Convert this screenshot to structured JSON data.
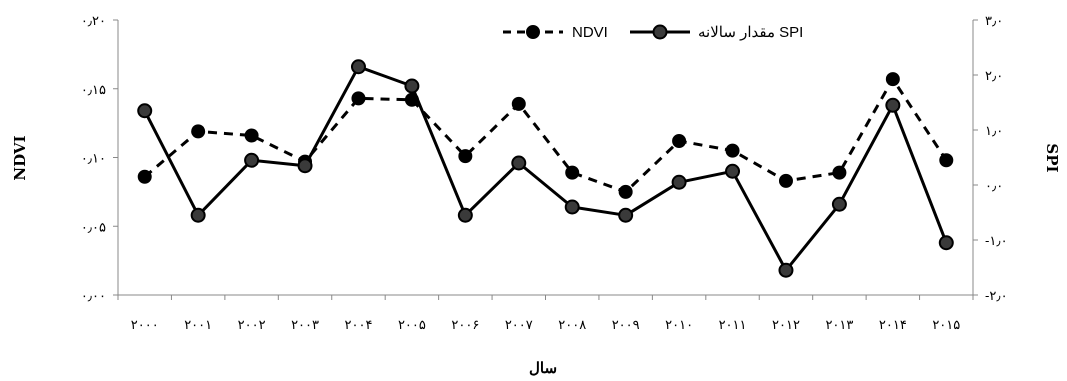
{
  "chart_data": {
    "type": "line",
    "x": [
      "۲۰۰۰",
      "۲۰۰۱",
      "۲۰۰۲",
      "۲۰۰۳",
      "۲۰۰۴",
      "۲۰۰۵",
      "۲۰۰۶",
      "۲۰۰۷",
      "۲۰۰۸",
      "۲۰۰۹",
      "۲۰۱۰",
      "۲۰۱۱",
      "۲۰۱۲",
      "۲۰۱۳",
      "۲۰۱۴",
      "۲۰۱۵"
    ],
    "xlabel": "سال",
    "ylabel_left": "NDVI",
    "ylabel_right": "SPI",
    "ylim_left": [
      0,
      0.2
    ],
    "ylim_right": [
      -2,
      3
    ],
    "yticks_left": [
      "۰٫۰۰",
      "۰٫۰۵",
      "۰٫۱۰",
      "۰٫۱۵",
      "۰٫۲۰"
    ],
    "yticks_right": [
      "-۲٫۰",
      "-۱٫۰",
      "۰٫۰",
      "۱٫۰",
      "۲٫۰",
      "۳٫۰"
    ],
    "legend_position": "top",
    "series": [
      {
        "name": "NDVI",
        "axis": "left",
        "style": "dashed",
        "values": [
          0.086,
          0.119,
          0.116,
          0.097,
          0.143,
          0.142,
          0.101,
          0.139,
          0.089,
          0.075,
          0.112,
          0.105,
          0.083,
          0.089,
          0.157,
          0.098
        ]
      },
      {
        "name": "مقدار سالانه SPI",
        "axis": "right",
        "style": "solid",
        "values": [
          1.35,
          -0.55,
          0.45,
          0.35,
          2.15,
          1.8,
          -0.55,
          0.4,
          -0.4,
          -0.55,
          0.05,
          0.25,
          -1.55,
          -0.35,
          1.45,
          -1.05
        ]
      }
    ]
  },
  "colors": {
    "line": "#000000",
    "marker_fill_ndvi": "#000000",
    "marker_fill_spi": "#3a3a3a",
    "axis": "#888888"
  }
}
